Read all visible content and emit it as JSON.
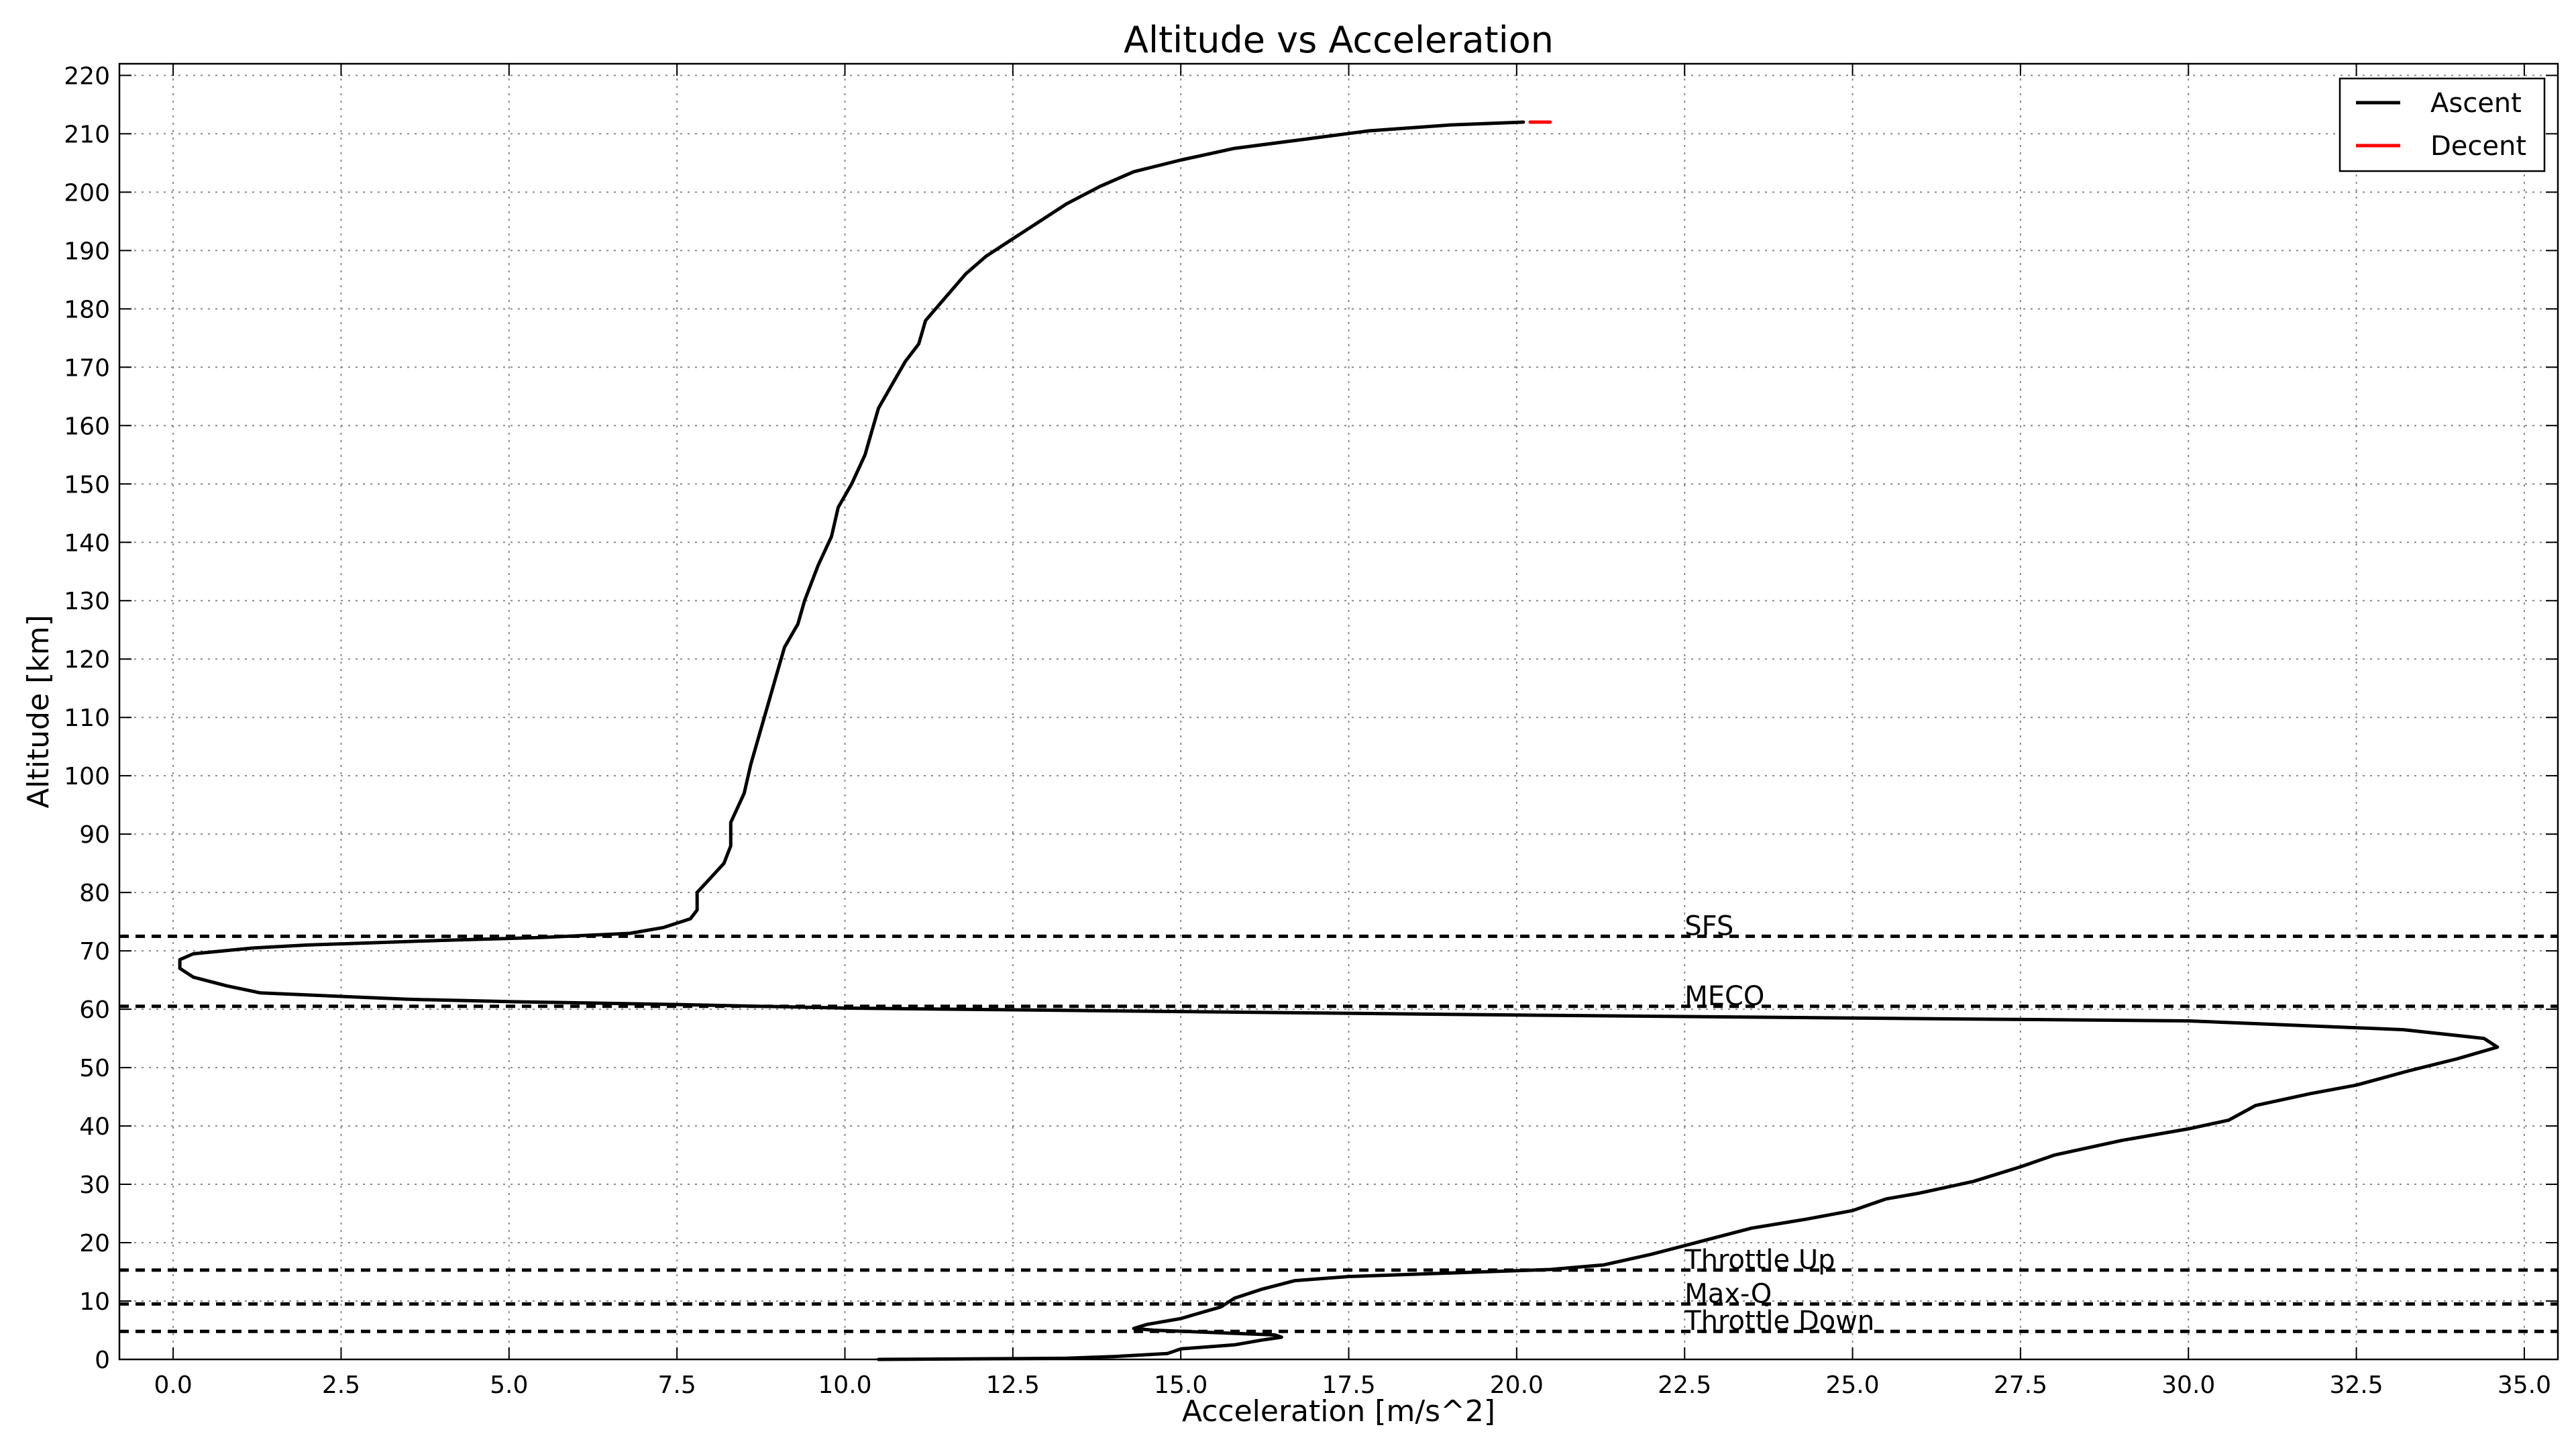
{
  "chart_data": {
    "type": "line",
    "title": "Altitude vs Acceleration",
    "xlabel": "Acceleration [m/s^2]",
    "ylabel": "Altitude [km]",
    "xlim": [
      -0.8,
      35.5
    ],
    "ylim": [
      0,
      222
    ],
    "x_ticks": [
      0.0,
      2.5,
      5.0,
      7.5,
      10.0,
      12.5,
      15.0,
      17.5,
      20.0,
      22.5,
      25.0,
      27.5,
      30.0,
      32.5,
      35.0
    ],
    "x_tick_labels": [
      "0.0",
      "2.5",
      "5.0",
      "7.5",
      "10.0",
      "12.5",
      "15.0",
      "17.5",
      "20.0",
      "22.5",
      "25.0",
      "27.5",
      "30.0",
      "32.5",
      "35.0"
    ],
    "y_ticks": [
      0,
      10,
      20,
      30,
      40,
      50,
      60,
      70,
      80,
      90,
      100,
      110,
      120,
      130,
      140,
      150,
      160,
      170,
      180,
      190,
      200,
      210,
      220
    ],
    "y_tick_labels": [
      "0",
      "10",
      "20",
      "30",
      "40",
      "50",
      "60",
      "70",
      "80",
      "90",
      "100",
      "110",
      "120",
      "130",
      "140",
      "150",
      "160",
      "170",
      "180",
      "190",
      "200",
      "210",
      "220"
    ],
    "grid": true,
    "legend_position": "top-right",
    "series": [
      {
        "name": "Ascent",
        "color": "#000000",
        "points": [
          [
            10.5,
            0.0
          ],
          [
            12.0,
            0.1
          ],
          [
            13.3,
            0.2
          ],
          [
            14.0,
            0.5
          ],
          [
            14.8,
            1.0
          ],
          [
            15.0,
            1.8
          ],
          [
            15.8,
            2.5
          ],
          [
            16.2,
            3.3
          ],
          [
            16.5,
            3.8
          ],
          [
            16.4,
            4.2
          ],
          [
            15.5,
            4.6
          ],
          [
            14.6,
            5.0
          ],
          [
            14.3,
            5.3
          ],
          [
            14.5,
            6.0
          ],
          [
            15.0,
            7.0
          ],
          [
            15.3,
            8.0
          ],
          [
            15.6,
            9.0
          ],
          [
            15.8,
            10.5
          ],
          [
            16.2,
            12.0
          ],
          [
            16.7,
            13.5
          ],
          [
            17.5,
            14.2
          ],
          [
            18.5,
            14.6
          ],
          [
            19.5,
            15.0
          ],
          [
            20.5,
            15.4
          ],
          [
            21.3,
            16.2
          ],
          [
            22.0,
            18.0
          ],
          [
            22.5,
            19.5
          ],
          [
            23.0,
            21.0
          ],
          [
            23.5,
            22.5
          ],
          [
            24.3,
            24.0
          ],
          [
            25.0,
            25.5
          ],
          [
            25.5,
            27.5
          ],
          [
            26.0,
            28.5
          ],
          [
            26.8,
            30.5
          ],
          [
            27.5,
            33.0
          ],
          [
            28.0,
            35.0
          ],
          [
            29.0,
            37.5
          ],
          [
            30.0,
            39.5
          ],
          [
            30.6,
            41.0
          ],
          [
            31.0,
            43.5
          ],
          [
            31.8,
            45.5
          ],
          [
            32.5,
            47.0
          ],
          [
            33.3,
            49.5
          ],
          [
            34.0,
            51.5
          ],
          [
            34.6,
            53.5
          ],
          [
            34.4,
            55.0
          ],
          [
            33.2,
            56.5
          ],
          [
            30.0,
            58.0
          ],
          [
            25.0,
            58.5
          ],
          [
            20.0,
            59.0
          ],
          [
            15.0,
            59.6
          ],
          [
            10.0,
            60.2
          ],
          [
            7.5,
            60.8
          ],
          [
            5.0,
            61.3
          ],
          [
            3.5,
            61.7
          ],
          [
            2.5,
            62.2
          ],
          [
            1.3,
            62.8
          ],
          [
            0.8,
            64.0
          ],
          [
            0.3,
            65.5
          ],
          [
            0.1,
            67.0
          ],
          [
            0.1,
            68.5
          ],
          [
            0.3,
            69.5
          ],
          [
            1.2,
            70.5
          ],
          [
            2.0,
            71.0
          ],
          [
            4.0,
            71.8
          ],
          [
            5.5,
            72.3
          ],
          [
            6.8,
            73.0
          ],
          [
            7.3,
            74.0
          ],
          [
            7.7,
            75.5
          ],
          [
            7.8,
            77.0
          ],
          [
            7.8,
            80.0
          ],
          [
            8.0,
            82.5
          ],
          [
            8.2,
            85.0
          ],
          [
            8.3,
            88.0
          ],
          [
            8.3,
            92.0
          ],
          [
            8.5,
            97.0
          ],
          [
            8.6,
            102.0
          ],
          [
            8.7,
            106.0
          ],
          [
            8.8,
            110.0
          ],
          [
            8.9,
            114.0
          ],
          [
            9.0,
            118.0
          ],
          [
            9.1,
            122.0
          ],
          [
            9.3,
            126.0
          ],
          [
            9.4,
            130.0
          ],
          [
            9.6,
            136.0
          ],
          [
            9.8,
            141.0
          ],
          [
            9.9,
            146.0
          ],
          [
            10.1,
            150.0
          ],
          [
            10.3,
            155.0
          ],
          [
            10.4,
            159.0
          ],
          [
            10.5,
            163.0
          ],
          [
            10.7,
            167.0
          ],
          [
            10.9,
            171.0
          ],
          [
            11.1,
            174.0
          ],
          [
            11.2,
            178.0
          ],
          [
            11.5,
            182.0
          ],
          [
            11.8,
            186.0
          ],
          [
            12.1,
            189.0
          ],
          [
            12.5,
            192.0
          ],
          [
            12.9,
            195.0
          ],
          [
            13.3,
            198.0
          ],
          [
            13.8,
            201.0
          ],
          [
            14.3,
            203.5
          ],
          [
            15.0,
            205.5
          ],
          [
            15.8,
            207.5
          ],
          [
            16.8,
            209.0
          ],
          [
            17.8,
            210.5
          ],
          [
            19.0,
            211.5
          ],
          [
            20.1,
            212.0
          ]
        ]
      },
      {
        "name": "Decent",
        "color": "#ff0000",
        "points": [
          [
            20.2,
            212.0
          ],
          [
            20.5,
            212.0
          ]
        ]
      }
    ],
    "events": [
      {
        "label": "SFS",
        "altitude": 72.5
      },
      {
        "label": "MECO",
        "altitude": 60.5
      },
      {
        "label": "Throttle Up",
        "altitude": 15.3
      },
      {
        "label": "Max-Q",
        "altitude": 9.5
      },
      {
        "label": "Throttle Down",
        "altitude": 4.8
      }
    ],
    "event_label_x": 22.5
  }
}
